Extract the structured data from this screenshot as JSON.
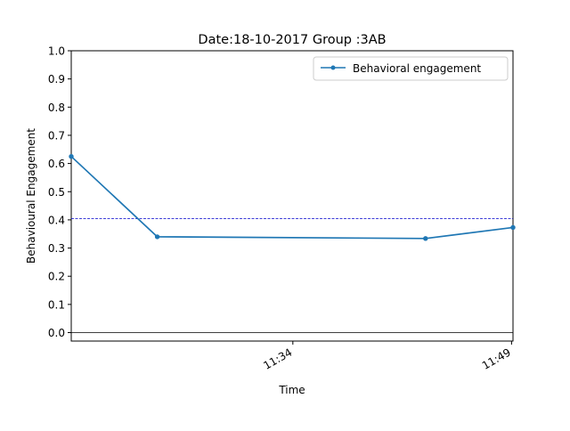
{
  "chart_data": {
    "type": "line",
    "title": "Date:18-10-2017 Group :3AB",
    "xlabel": "Time",
    "ylabel": "Behavioural Engagement",
    "x_ticks": [
      "11:34",
      "11:49"
    ],
    "x_tick_minutes": [
      694,
      709
    ],
    "xlim_minutes": [
      678.8,
      709.1
    ],
    "ylim": [
      -0.03,
      1.0
    ],
    "y_ticks": [
      "0.0",
      "0.1",
      "0.2",
      "0.3",
      "0.4",
      "0.5",
      "0.6",
      "0.7",
      "0.8",
      "0.9",
      "1.0"
    ],
    "series": [
      {
        "name": "Behavioral engagement",
        "color": "#1f77b4",
        "x_minutes": [
          678.8,
          684.7,
          703.1,
          709.1
        ],
        "values": [
          0.625,
          0.34,
          0.334,
          0.373
        ]
      }
    ],
    "reference_lines": [
      {
        "y": 0.404,
        "color": "#0000cc",
        "style": "dashed"
      },
      {
        "y": 0.0,
        "color": "#000000",
        "style": "solid"
      }
    ],
    "legend_position": "upper right",
    "grid": false
  }
}
